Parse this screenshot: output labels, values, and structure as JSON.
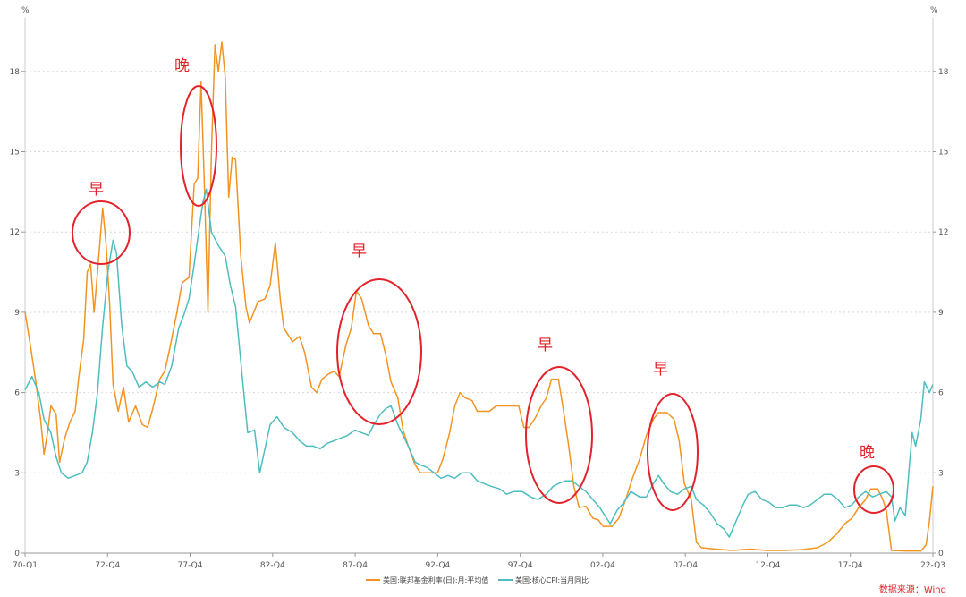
{
  "chart_data": {
    "type": "line",
    "y_unit_left": "%",
    "y_unit_right": "%",
    "ylim": [
      0,
      20
    ],
    "yticks": [
      0,
      3,
      6,
      9,
      12,
      15,
      18
    ],
    "y_grid": true,
    "x_ticks": [
      "70-Q1",
      "72-Q4",
      "77-Q4",
      "82-Q4",
      "87-Q4",
      "92-Q4",
      "97-Q4",
      "02-Q4",
      "07-Q4",
      "12-Q4",
      "17-Q4",
      "22-Q3"
    ],
    "legend_position": "bottom",
    "source": "数据来源：Wind",
    "series": [
      {
        "name": "美国:联邦基金利率(日):月:平均值",
        "color": "#f39321",
        "points": [
          [
            1970.0,
            9.0
          ],
          [
            1970.3,
            7.8
          ],
          [
            1970.6,
            6.5
          ],
          [
            1970.9,
            5.0
          ],
          [
            1971.1,
            3.7
          ],
          [
            1971.3,
            4.5
          ],
          [
            1971.5,
            5.5
          ],
          [
            1971.8,
            5.2
          ],
          [
            1972.0,
            3.4
          ],
          [
            1972.3,
            4.3
          ],
          [
            1972.6,
            4.9
          ],
          [
            1972.9,
            5.3
          ],
          [
            1973.1,
            6.5
          ],
          [
            1973.4,
            8.0
          ],
          [
            1973.6,
            10.5
          ],
          [
            1973.8,
            10.8
          ],
          [
            1974.0,
            9.0
          ],
          [
            1974.2,
            10.5
          ],
          [
            1974.5,
            12.9
          ],
          [
            1974.7,
            11.5
          ],
          [
            1974.9,
            9.3
          ],
          [
            1975.1,
            6.3
          ],
          [
            1975.4,
            5.3
          ],
          [
            1975.7,
            6.2
          ],
          [
            1976.0,
            4.9
          ],
          [
            1976.4,
            5.5
          ],
          [
            1976.8,
            4.8
          ],
          [
            1977.1,
            4.7
          ],
          [
            1977.4,
            5.4
          ],
          [
            1977.8,
            6.5
          ],
          [
            1978.1,
            6.8
          ],
          [
            1978.4,
            7.7
          ],
          [
            1978.8,
            9.0
          ],
          [
            1979.1,
            10.1
          ],
          [
            1979.5,
            10.3
          ],
          [
            1979.8,
            13.8
          ],
          [
            1980.0,
            14.0
          ],
          [
            1980.2,
            17.6
          ],
          [
            1980.4,
            13.5
          ],
          [
            1980.6,
            9.0
          ],
          [
            1980.8,
            15.0
          ],
          [
            1981.0,
            19.0
          ],
          [
            1981.2,
            18.0
          ],
          [
            1981.4,
            19.1
          ],
          [
            1981.6,
            17.8
          ],
          [
            1981.8,
            13.3
          ],
          [
            1982.0,
            14.8
          ],
          [
            1982.2,
            14.7
          ],
          [
            1982.5,
            11.1
          ],
          [
            1982.8,
            9.2
          ],
          [
            1983.0,
            8.6
          ],
          [
            1983.5,
            9.4
          ],
          [
            1983.9,
            9.5
          ],
          [
            1984.2,
            10.0
          ],
          [
            1984.5,
            11.6
          ],
          [
            1984.8,
            9.4
          ],
          [
            1985.0,
            8.4
          ],
          [
            1985.5,
            7.9
          ],
          [
            1985.9,
            8.1
          ],
          [
            1986.2,
            7.5
          ],
          [
            1986.6,
            6.2
          ],
          [
            1986.9,
            6.0
          ],
          [
            1987.2,
            6.5
          ],
          [
            1987.6,
            6.7
          ],
          [
            1987.9,
            6.8
          ],
          [
            1988.2,
            6.6
          ],
          [
            1988.6,
            7.8
          ],
          [
            1988.9,
            8.4
          ],
          [
            1989.2,
            9.8
          ],
          [
            1989.5,
            9.5
          ],
          [
            1989.9,
            8.5
          ],
          [
            1990.2,
            8.2
          ],
          [
            1990.6,
            8.2
          ],
          [
            1990.9,
            7.4
          ],
          [
            1991.2,
            6.4
          ],
          [
            1991.6,
            5.8
          ],
          [
            1991.9,
            4.6
          ],
          [
            1992.2,
            4.0
          ],
          [
            1992.6,
            3.3
          ],
          [
            1992.9,
            3.0
          ],
          [
            1993.4,
            3.0
          ],
          [
            1993.9,
            3.0
          ],
          [
            1994.2,
            3.5
          ],
          [
            1994.6,
            4.5
          ],
          [
            1994.9,
            5.5
          ],
          [
            1995.2,
            6.0
          ],
          [
            1995.5,
            5.8
          ],
          [
            1995.9,
            5.7
          ],
          [
            1996.2,
            5.3
          ],
          [
            1996.6,
            5.3
          ],
          [
            1996.9,
            5.3
          ],
          [
            1997.3,
            5.5
          ],
          [
            1997.8,
            5.5
          ],
          [
            1998.2,
            5.5
          ],
          [
            1998.6,
            5.5
          ],
          [
            1998.9,
            4.7
          ],
          [
            1999.2,
            4.7
          ],
          [
            1999.6,
            5.1
          ],
          [
            1999.9,
            5.5
          ],
          [
            2000.2,
            5.8
          ],
          [
            2000.5,
            6.5
          ],
          [
            2000.9,
            6.5
          ],
          [
            2001.2,
            5.3
          ],
          [
            2001.5,
            4.0
          ],
          [
            2001.8,
            2.5
          ],
          [
            2002.1,
            1.7
          ],
          [
            2002.5,
            1.75
          ],
          [
            2002.9,
            1.3
          ],
          [
            2003.2,
            1.25
          ],
          [
            2003.5,
            1.0
          ],
          [
            2004.0,
            1.0
          ],
          [
            2004.4,
            1.3
          ],
          [
            2004.8,
            2.0
          ],
          [
            2005.2,
            2.8
          ],
          [
            2005.6,
            3.5
          ],
          [
            2006.0,
            4.4
          ],
          [
            2006.4,
            5.0
          ],
          [
            2006.7,
            5.25
          ],
          [
            2007.2,
            5.25
          ],
          [
            2007.6,
            5.0
          ],
          [
            2007.9,
            4.2
          ],
          [
            2008.2,
            2.6
          ],
          [
            2008.6,
            2.0
          ],
          [
            2008.9,
            0.4
          ],
          [
            2009.2,
            0.2
          ],
          [
            2010.0,
            0.15
          ],
          [
            2011.0,
            0.1
          ],
          [
            2012.0,
            0.15
          ],
          [
            2013.0,
            0.1
          ],
          [
            2014.0,
            0.1
          ],
          [
            2015.0,
            0.13
          ],
          [
            2015.9,
            0.2
          ],
          [
            2016.5,
            0.4
          ],
          [
            2017.0,
            0.7
          ],
          [
            2017.5,
            1.1
          ],
          [
            2017.9,
            1.3
          ],
          [
            2018.3,
            1.7
          ],
          [
            2018.7,
            2.0
          ],
          [
            2019.0,
            2.4
          ],
          [
            2019.4,
            2.4
          ],
          [
            2019.7,
            2.0
          ],
          [
            2019.9,
            1.6
          ],
          [
            2020.2,
            0.1
          ],
          [
            2021.0,
            0.08
          ],
          [
            2021.9,
            0.08
          ],
          [
            2022.2,
            0.3
          ],
          [
            2022.4,
            1.2
          ],
          [
            2022.6,
            2.5
          ]
        ]
      },
      {
        "name": "美国:核心CPI:当月同比",
        "color": "#4dbdbf",
        "points": [
          [
            1970.0,
            6.1
          ],
          [
            1970.4,
            6.6
          ],
          [
            1970.8,
            6.0
          ],
          [
            1971.1,
            5.0
          ],
          [
            1971.5,
            4.5
          ],
          [
            1971.8,
            3.6
          ],
          [
            1972.1,
            3.0
          ],
          [
            1972.5,
            2.8
          ],
          [
            1972.9,
            2.9
          ],
          [
            1973.3,
            3.0
          ],
          [
            1973.6,
            3.4
          ],
          [
            1973.9,
            4.5
          ],
          [
            1974.2,
            6.0
          ],
          [
            1974.5,
            8.5
          ],
          [
            1974.8,
            10.5
          ],
          [
            1975.1,
            11.7
          ],
          [
            1975.3,
            11.2
          ],
          [
            1975.6,
            8.5
          ],
          [
            1975.9,
            7.0
          ],
          [
            1976.2,
            6.8
          ],
          [
            1976.6,
            6.2
          ],
          [
            1977.0,
            6.4
          ],
          [
            1977.4,
            6.2
          ],
          [
            1977.8,
            6.4
          ],
          [
            1978.1,
            6.3
          ],
          [
            1978.5,
            7.0
          ],
          [
            1978.9,
            8.4
          ],
          [
            1979.2,
            8.9
          ],
          [
            1979.5,
            9.5
          ],
          [
            1979.8,
            10.8
          ],
          [
            1980.1,
            12.2
          ],
          [
            1980.3,
            13.1
          ],
          [
            1980.5,
            13.6
          ],
          [
            1980.8,
            12.0
          ],
          [
            1981.2,
            11.5
          ],
          [
            1981.6,
            11.1
          ],
          [
            1981.9,
            10.0
          ],
          [
            1982.2,
            9.2
          ],
          [
            1982.6,
            6.5
          ],
          [
            1982.9,
            4.5
          ],
          [
            1983.3,
            4.6
          ],
          [
            1983.6,
            3.0
          ],
          [
            1983.9,
            3.9
          ],
          [
            1984.2,
            4.8
          ],
          [
            1984.6,
            5.1
          ],
          [
            1985.0,
            4.7
          ],
          [
            1985.5,
            4.5
          ],
          [
            1985.9,
            4.2
          ],
          [
            1986.3,
            4.0
          ],
          [
            1986.7,
            4.0
          ],
          [
            1987.1,
            3.9
          ],
          [
            1987.5,
            4.1
          ],
          [
            1987.9,
            4.2
          ],
          [
            1988.3,
            4.3
          ],
          [
            1988.7,
            4.4
          ],
          [
            1989.1,
            4.6
          ],
          [
            1989.5,
            4.5
          ],
          [
            1989.9,
            4.4
          ],
          [
            1990.2,
            4.8
          ],
          [
            1990.6,
            5.2
          ],
          [
            1990.9,
            5.4
          ],
          [
            1991.2,
            5.5
          ],
          [
            1991.6,
            4.8
          ],
          [
            1991.9,
            4.4
          ],
          [
            1992.2,
            4.0
          ],
          [
            1992.6,
            3.4
          ],
          [
            1992.9,
            3.3
          ],
          [
            1993.3,
            3.2
          ],
          [
            1993.7,
            3.0
          ],
          [
            1994.1,
            2.8
          ],
          [
            1994.5,
            2.9
          ],
          [
            1994.9,
            2.8
          ],
          [
            1995.3,
            3.0
          ],
          [
            1995.8,
            3.0
          ],
          [
            1996.2,
            2.7
          ],
          [
            1996.6,
            2.6
          ],
          [
            1997.0,
            2.5
          ],
          [
            1997.5,
            2.4
          ],
          [
            1997.9,
            2.2
          ],
          [
            1998.3,
            2.3
          ],
          [
            1998.8,
            2.3
          ],
          [
            1999.3,
            2.1
          ],
          [
            1999.7,
            2.0
          ],
          [
            2000.2,
            2.2
          ],
          [
            2000.6,
            2.5
          ],
          [
            2000.9,
            2.6
          ],
          [
            2001.3,
            2.7
          ],
          [
            2001.7,
            2.7
          ],
          [
            2002.1,
            2.5
          ],
          [
            2002.5,
            2.3
          ],
          [
            2002.9,
            2.0
          ],
          [
            2003.3,
            1.7
          ],
          [
            2003.7,
            1.3
          ],
          [
            2003.9,
            1.1
          ],
          [
            2004.3,
            1.6
          ],
          [
            2004.7,
            1.9
          ],
          [
            2005.1,
            2.3
          ],
          [
            2005.6,
            2.1
          ],
          [
            2006.0,
            2.1
          ],
          [
            2006.4,
            2.6
          ],
          [
            2006.7,
            2.9
          ],
          [
            2007.0,
            2.6
          ],
          [
            2007.4,
            2.3
          ],
          [
            2007.8,
            2.2
          ],
          [
            2008.2,
            2.4
          ],
          [
            2008.6,
            2.5
          ],
          [
            2008.9,
            2.0
          ],
          [
            2009.3,
            1.8
          ],
          [
            2009.7,
            1.5
          ],
          [
            2010.1,
            1.1
          ],
          [
            2010.5,
            0.9
          ],
          [
            2010.8,
            0.6
          ],
          [
            2011.2,
            1.2
          ],
          [
            2011.6,
            1.8
          ],
          [
            2011.9,
            2.2
          ],
          [
            2012.3,
            2.3
          ],
          [
            2012.7,
            2.0
          ],
          [
            2013.1,
            1.9
          ],
          [
            2013.5,
            1.7
          ],
          [
            2013.9,
            1.7
          ],
          [
            2014.3,
            1.8
          ],
          [
            2014.7,
            1.8
          ],
          [
            2015.1,
            1.7
          ],
          [
            2015.5,
            1.8
          ],
          [
            2015.9,
            2.0
          ],
          [
            2016.3,
            2.2
          ],
          [
            2016.7,
            2.2
          ],
          [
            2017.1,
            2.0
          ],
          [
            2017.5,
            1.7
          ],
          [
            2017.9,
            1.8
          ],
          [
            2018.3,
            2.1
          ],
          [
            2018.7,
            2.3
          ],
          [
            2019.1,
            2.1
          ],
          [
            2019.5,
            2.2
          ],
          [
            2019.9,
            2.3
          ],
          [
            2020.2,
            2.1
          ],
          [
            2020.4,
            1.2
          ],
          [
            2020.7,
            1.7
          ],
          [
            2021.0,
            1.4
          ],
          [
            2021.2,
            3.0
          ],
          [
            2021.4,
            4.5
          ],
          [
            2021.6,
            4.0
          ],
          [
            2021.9,
            5.0
          ],
          [
            2022.1,
            6.4
          ],
          [
            2022.4,
            6.0
          ],
          [
            2022.6,
            6.3
          ]
        ]
      }
    ]
  },
  "annotations": [
    {
      "text": "早",
      "color": "#e3232c"
    },
    {
      "text": "晚",
      "color": "#e3232c"
    },
    {
      "text": "早",
      "color": "#e3232c"
    },
    {
      "text": "早",
      "color": "#e3232c"
    },
    {
      "text": "早",
      "color": "#e3232c"
    },
    {
      "text": "晚",
      "color": "#e3232c"
    }
  ]
}
